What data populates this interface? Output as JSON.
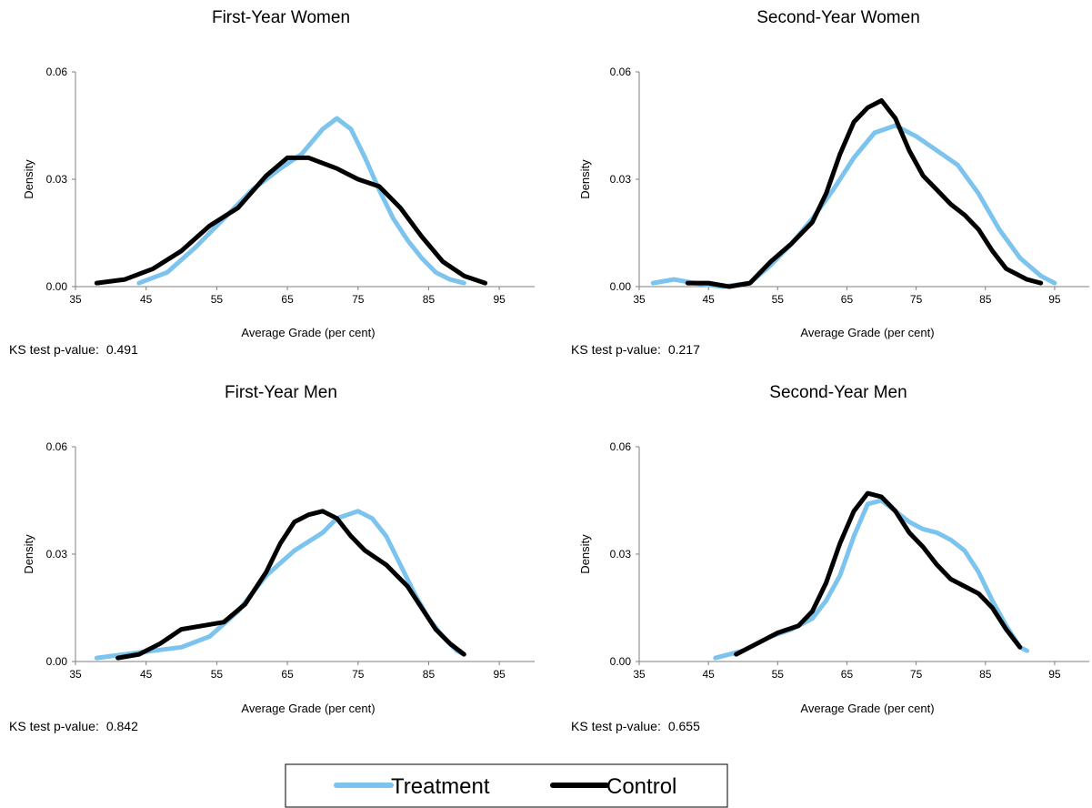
{
  "colors": {
    "treatment": "#7cc3ee",
    "control": "#000000",
    "axis": "#7f7f7f"
  },
  "legend": {
    "items": [
      {
        "label": "Treatment"
      },
      {
        "label": "Control"
      }
    ]
  },
  "chart_data": [
    {
      "type": "line",
      "title": "First-Year  Women",
      "xlabel": "Average Grade (per cent)",
      "ylabel": "Density",
      "xlim": [
        35,
        100
      ],
      "ylim": [
        0,
        0.06
      ],
      "xticks": [
        "35",
        "45",
        "55",
        "65",
        "75",
        "85",
        "95"
      ],
      "yticks": [
        "0.00",
        "0.03",
        "0.06"
      ],
      "ks_label": "KS test  p-value:",
      "ks_value": "0.491",
      "series": [
        {
          "name": "Treatment",
          "points": [
            [
              44,
              0.001
            ],
            [
              48,
              0.004
            ],
            [
              52,
              0.011
            ],
            [
              56,
              0.019
            ],
            [
              60,
              0.027
            ],
            [
              64,
              0.033
            ],
            [
              67,
              0.037
            ],
            [
              70,
              0.044
            ],
            [
              72,
              0.047
            ],
            [
              74,
              0.044
            ],
            [
              76,
              0.036
            ],
            [
              78,
              0.027
            ],
            [
              80,
              0.019
            ],
            [
              82,
              0.013
            ],
            [
              84,
              0.008
            ],
            [
              86,
              0.004
            ],
            [
              88,
              0.002
            ],
            [
              90,
              0.001
            ]
          ]
        },
        {
          "name": "Control",
          "points": [
            [
              38,
              0.001
            ],
            [
              42,
              0.002
            ],
            [
              46,
              0.005
            ],
            [
              50,
              0.01
            ],
            [
              54,
              0.017
            ],
            [
              58,
              0.022
            ],
            [
              62,
              0.031
            ],
            [
              65,
              0.036
            ],
            [
              68,
              0.036
            ],
            [
              72,
              0.033
            ],
            [
              75,
              0.03
            ],
            [
              78,
              0.028
            ],
            [
              81,
              0.022
            ],
            [
              84,
              0.014
            ],
            [
              87,
              0.007
            ],
            [
              90,
              0.003
            ],
            [
              93,
              0.001
            ]
          ]
        }
      ]
    },
    {
      "type": "line",
      "title": "Second-Year  Women",
      "xlabel": "Average Grade (per cent)",
      "ylabel": "Density",
      "xlim": [
        35,
        100
      ],
      "ylim": [
        0,
        0.06
      ],
      "xticks": [
        "35",
        "45",
        "55",
        "65",
        "75",
        "85",
        "95"
      ],
      "yticks": [
        "0.00",
        "0.03",
        "0.06"
      ],
      "ks_label": "KS test  p-value:",
      "ks_value": "0.217",
      "series": [
        {
          "name": "Treatment",
          "points": [
            [
              37,
              0.001
            ],
            [
              40,
              0.002
            ],
            [
              43,
              0.001
            ],
            [
              47,
              0.0
            ],
            [
              51,
              0.001
            ],
            [
              54,
              0.006
            ],
            [
              57,
              0.012
            ],
            [
              60,
              0.019
            ],
            [
              63,
              0.027
            ],
            [
              66,
              0.036
            ],
            [
              69,
              0.043
            ],
            [
              72,
              0.045
            ],
            [
              75,
              0.042
            ],
            [
              78,
              0.038
            ],
            [
              81,
              0.034
            ],
            [
              84,
              0.026
            ],
            [
              87,
              0.016
            ],
            [
              90,
              0.008
            ],
            [
              93,
              0.003
            ],
            [
              95,
              0.001
            ]
          ]
        },
        {
          "name": "Control",
          "points": [
            [
              42,
              0.001
            ],
            [
              45,
              0.001
            ],
            [
              48,
              0.0
            ],
            [
              51,
              0.001
            ],
            [
              54,
              0.007
            ],
            [
              57,
              0.012
            ],
            [
              60,
              0.018
            ],
            [
              62,
              0.026
            ],
            [
              64,
              0.037
            ],
            [
              66,
              0.046
            ],
            [
              68,
              0.05
            ],
            [
              70,
              0.052
            ],
            [
              72,
              0.047
            ],
            [
              74,
              0.038
            ],
            [
              76,
              0.031
            ],
            [
              78,
              0.027
            ],
            [
              80,
              0.023
            ],
            [
              82,
              0.02
            ],
            [
              84,
              0.016
            ],
            [
              86,
              0.01
            ],
            [
              88,
              0.005
            ],
            [
              91,
              0.002
            ],
            [
              93,
              0.001
            ]
          ]
        }
      ]
    },
    {
      "type": "line",
      "title": "First-Year  Men",
      "xlabel": "Average Grade (per cent)",
      "ylabel": "Density",
      "xlim": [
        35,
        100
      ],
      "ylim": [
        0,
        0.06
      ],
      "xticks": [
        "35",
        "45",
        "55",
        "65",
        "75",
        "85",
        "95"
      ],
      "yticks": [
        "0.00",
        "0.03",
        "0.06"
      ],
      "ks_label": "KS test  p-value:",
      "ks_value": "0.842",
      "series": [
        {
          "name": "Treatment",
          "points": [
            [
              38,
              0.001
            ],
            [
              42,
              0.002
            ],
            [
              46,
              0.003
            ],
            [
              50,
              0.004
            ],
            [
              54,
              0.007
            ],
            [
              58,
              0.014
            ],
            [
              62,
              0.024
            ],
            [
              66,
              0.031
            ],
            [
              70,
              0.036
            ],
            [
              72,
              0.04
            ],
            [
              75,
              0.042
            ],
            [
              77,
              0.04
            ],
            [
              79,
              0.035
            ],
            [
              81,
              0.027
            ],
            [
              83,
              0.019
            ],
            [
              85,
              0.012
            ],
            [
              87,
              0.007
            ],
            [
              89,
              0.003
            ],
            [
              90,
              0.002
            ]
          ]
        },
        {
          "name": "Control",
          "points": [
            [
              41,
              0.001
            ],
            [
              44,
              0.002
            ],
            [
              47,
              0.005
            ],
            [
              50,
              0.009
            ],
            [
              53,
              0.01
            ],
            [
              56,
              0.011
            ],
            [
              59,
              0.016
            ],
            [
              62,
              0.025
            ],
            [
              64,
              0.033
            ],
            [
              66,
              0.039
            ],
            [
              68,
              0.041
            ],
            [
              70,
              0.042
            ],
            [
              72,
              0.04
            ],
            [
              74,
              0.035
            ],
            [
              76,
              0.031
            ],
            [
              79,
              0.027
            ],
            [
              82,
              0.021
            ],
            [
              84,
              0.015
            ],
            [
              86,
              0.009
            ],
            [
              88,
              0.005
            ],
            [
              90,
              0.002
            ]
          ]
        }
      ]
    },
    {
      "type": "line",
      "title": "Second-Year  Men",
      "xlabel": "Average Grade (per cent)",
      "ylabel": "Density",
      "xlim": [
        35,
        100
      ],
      "ylim": [
        0,
        0.06
      ],
      "xticks": [
        "35",
        "45",
        "55",
        "65",
        "75",
        "85",
        "95"
      ],
      "yticks": [
        "0.00",
        "0.03",
        "0.06"
      ],
      "ks_label": "KS test  p-value:",
      "ks_value": "0.655",
      "series": [
        {
          "name": "Treatment",
          "points": [
            [
              46,
              0.001
            ],
            [
              50,
              0.003
            ],
            [
              54,
              0.007
            ],
            [
              57,
              0.009
            ],
            [
              60,
              0.012
            ],
            [
              62,
              0.017
            ],
            [
              64,
              0.024
            ],
            [
              66,
              0.035
            ],
            [
              68,
              0.044
            ],
            [
              70,
              0.045
            ],
            [
              72,
              0.042
            ],
            [
              74,
              0.039
            ],
            [
              76,
              0.037
            ],
            [
              78,
              0.036
            ],
            [
              80,
              0.034
            ],
            [
              82,
              0.031
            ],
            [
              84,
              0.025
            ],
            [
              86,
              0.017
            ],
            [
              88,
              0.01
            ],
            [
              90,
              0.004
            ],
            [
              91,
              0.003
            ]
          ]
        },
        {
          "name": "Control",
          "points": [
            [
              49,
              0.002
            ],
            [
              52,
              0.005
            ],
            [
              55,
              0.008
            ],
            [
              58,
              0.01
            ],
            [
              60,
              0.014
            ],
            [
              62,
              0.022
            ],
            [
              64,
              0.033
            ],
            [
              66,
              0.042
            ],
            [
              68,
              0.047
            ],
            [
              70,
              0.046
            ],
            [
              72,
              0.042
            ],
            [
              74,
              0.036
            ],
            [
              76,
              0.032
            ],
            [
              78,
              0.027
            ],
            [
              80,
              0.023
            ],
            [
              82,
              0.021
            ],
            [
              84,
              0.019
            ],
            [
              86,
              0.015
            ],
            [
              88,
              0.009
            ],
            [
              90,
              0.004
            ]
          ]
        }
      ]
    }
  ]
}
